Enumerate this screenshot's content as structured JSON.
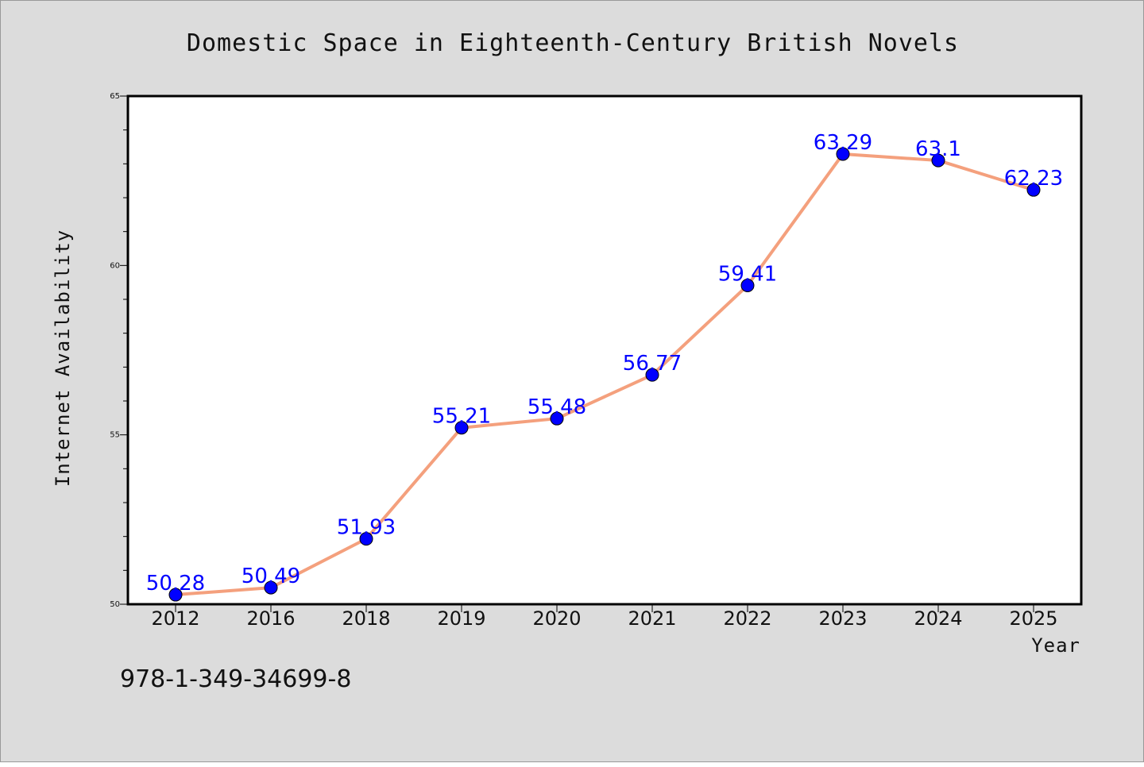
{
  "chart_data": {
    "type": "line",
    "title": "Domestic Space in Eighteenth-Century British Novels",
    "xlabel": "Year",
    "ylabel": "Internet Availability",
    "categories": [
      "2012",
      "2016",
      "2018",
      "2019",
      "2020",
      "2021",
      "2022",
      "2023",
      "2024",
      "2025"
    ],
    "series": [
      {
        "values": [
          50.28,
          50.49,
          51.93,
          55.21,
          55.48,
          56.77,
          59.41,
          63.29,
          63.1,
          62.23
        ],
        "labels": [
          "50.28",
          "50.49",
          "51.93",
          "55.21",
          "55.48",
          "56.77",
          "59.41",
          "63.29",
          "63.1",
          "62.23"
        ]
      }
    ],
    "ylim": [
      50,
      65
    ],
    "yticks": [
      "50",
      "55",
      "60",
      "65"
    ],
    "grid": false,
    "line_color": "#f4a07d",
    "marker_color": "#0000ff",
    "label_color": "#0000ff"
  },
  "annotation": {
    "isbn": "978-1-349-34699-8"
  }
}
